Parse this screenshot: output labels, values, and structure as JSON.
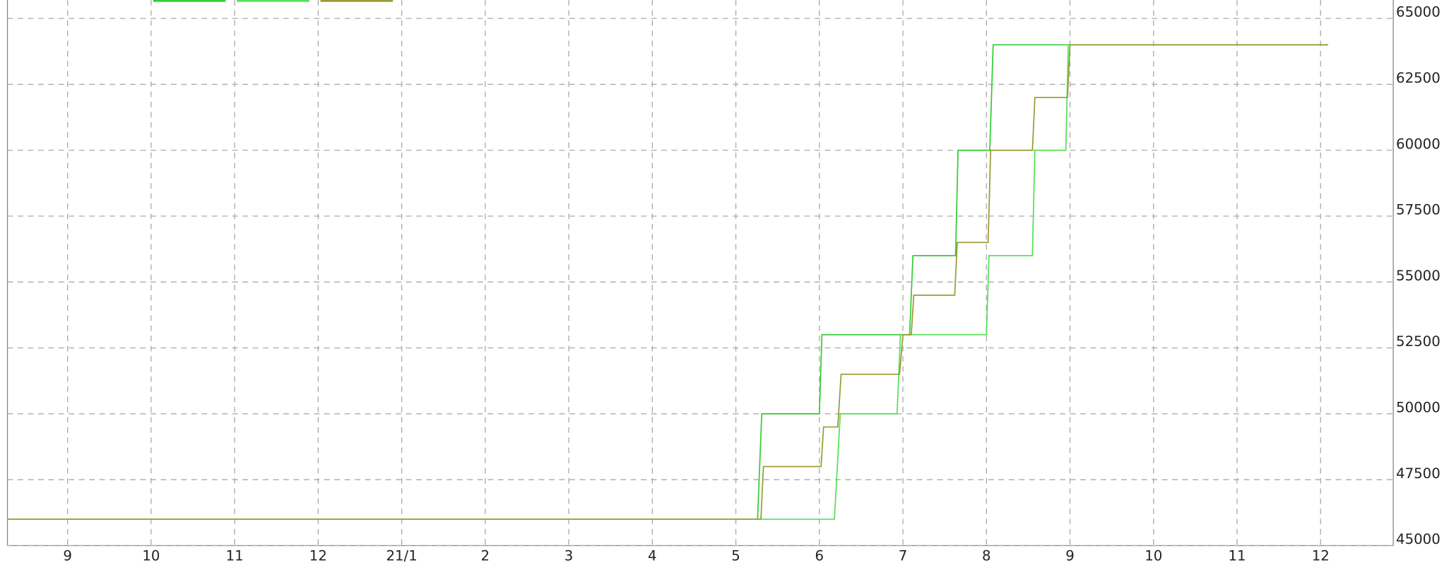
{
  "chart_data": {
    "type": "line",
    "xlim": [
      -0.72,
      15.87
    ],
    "xticks": [
      {
        "value": 0,
        "label": "9"
      },
      {
        "value": 1,
        "label": "10"
      },
      {
        "value": 2,
        "label": "11"
      },
      {
        "value": 3,
        "label": "12"
      },
      {
        "value": 4,
        "label": "21/1"
      },
      {
        "value": 5,
        "label": "2"
      },
      {
        "value": 6,
        "label": "3"
      },
      {
        "value": 7,
        "label": "4"
      },
      {
        "value": 8,
        "label": "5"
      },
      {
        "value": 9,
        "label": "6"
      },
      {
        "value": 10,
        "label": "7"
      },
      {
        "value": 11,
        "label": "8"
      },
      {
        "value": 12,
        "label": "9"
      },
      {
        "value": 13,
        "label": "10"
      },
      {
        "value": 14,
        "label": "11"
      },
      {
        "value": 15,
        "label": "12"
      }
    ],
    "ylim": [
      45000,
      65700
    ],
    "yticks": [
      45000,
      47500,
      50000,
      52500,
      55000,
      57500,
      60000,
      62500,
      65000
    ],
    "grid": true,
    "series": [
      {
        "color": "#33cc33",
        "x": [
          -0.72,
          8.26,
          8.31,
          9.0,
          9.03,
          10.08,
          10.12,
          10.63,
          10.66,
          11.04,
          11.08,
          15.09
        ],
        "values": [
          46000,
          46000,
          50000,
          50000,
          53000,
          53000,
          56000,
          56000,
          60000,
          60000,
          64000,
          64000
        ]
      },
      {
        "color": "#55e055",
        "x": [
          -0.72,
          9.18,
          9.25,
          9.93,
          9.97,
          11.0,
          11.03,
          11.55,
          11.58,
          11.95,
          11.98,
          15.09
        ],
        "values": [
          46000,
          46000,
          50000,
          50000,
          53000,
          53000,
          56000,
          56000,
          60000,
          60000,
          64000,
          64000
        ]
      },
      {
        "color": "#999933",
        "x": [
          -0.72,
          8.3,
          8.33,
          9.02,
          9.05,
          9.22,
          9.26,
          9.96,
          10.0,
          10.1,
          10.13,
          10.62,
          10.65,
          11.02,
          11.05,
          11.55,
          11.58,
          11.97,
          12.0,
          15.09
        ],
        "values": [
          46000,
          46000,
          48000,
          48000,
          49500,
          49500,
          51500,
          51500,
          53000,
          53000,
          54500,
          54500,
          56500,
          56500,
          60000,
          60000,
          62000,
          62000,
          64000,
          64000
        ]
      }
    ]
  }
}
